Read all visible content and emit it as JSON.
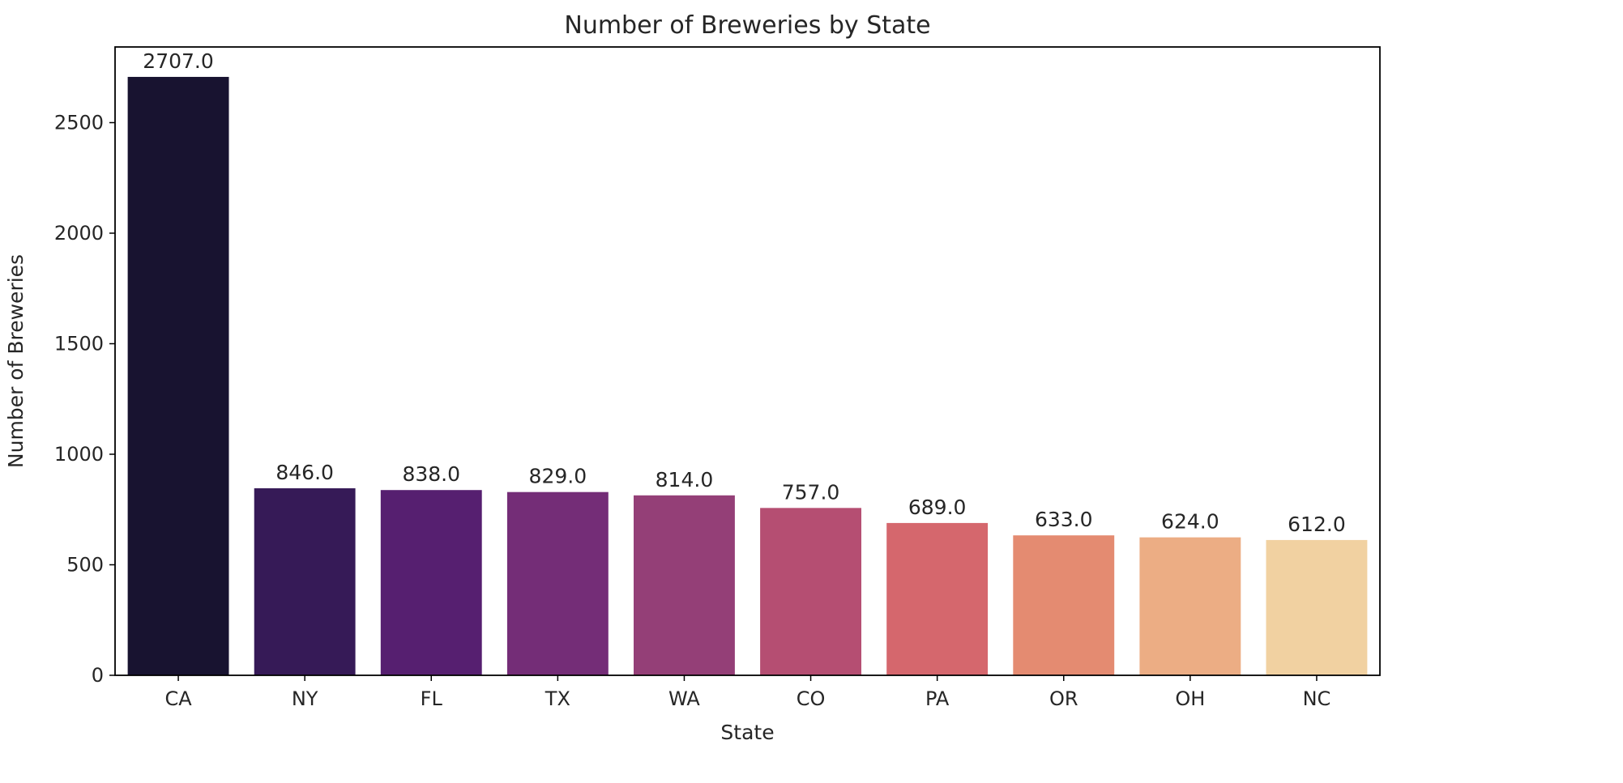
{
  "chart_data": {
    "type": "bar",
    "title": "Number of Breweries by State",
    "xlabel": "State",
    "ylabel": "Number of Breweries",
    "categories": [
      "CA",
      "NY",
      "FL",
      "TX",
      "WA",
      "CO",
      "PA",
      "OR",
      "OH",
      "NC"
    ],
    "values": [
      2707,
      846,
      838,
      829,
      814,
      757,
      689,
      633,
      624,
      612
    ],
    "value_labels": [
      "2707.0",
      "846.0",
      "838.0",
      "829.0",
      "814.0",
      "757.0",
      "689.0",
      "633.0",
      "624.0",
      "612.0"
    ],
    "colors": [
      "#181330",
      "#361a57",
      "#561f70",
      "#742d77",
      "#943f77",
      "#b54e72",
      "#d5676d",
      "#e48b71",
      "#ecad84",
      "#f1d1a1"
    ],
    "yticks": [
      0,
      500,
      1000,
      1500,
      2000,
      2500
    ],
    "ytick_labels": [
      "0",
      "500",
      "1000",
      "1500",
      "2000",
      "2500"
    ],
    "ylim": [
      0,
      2842.35
    ],
    "grid": false,
    "legend": "none"
  }
}
